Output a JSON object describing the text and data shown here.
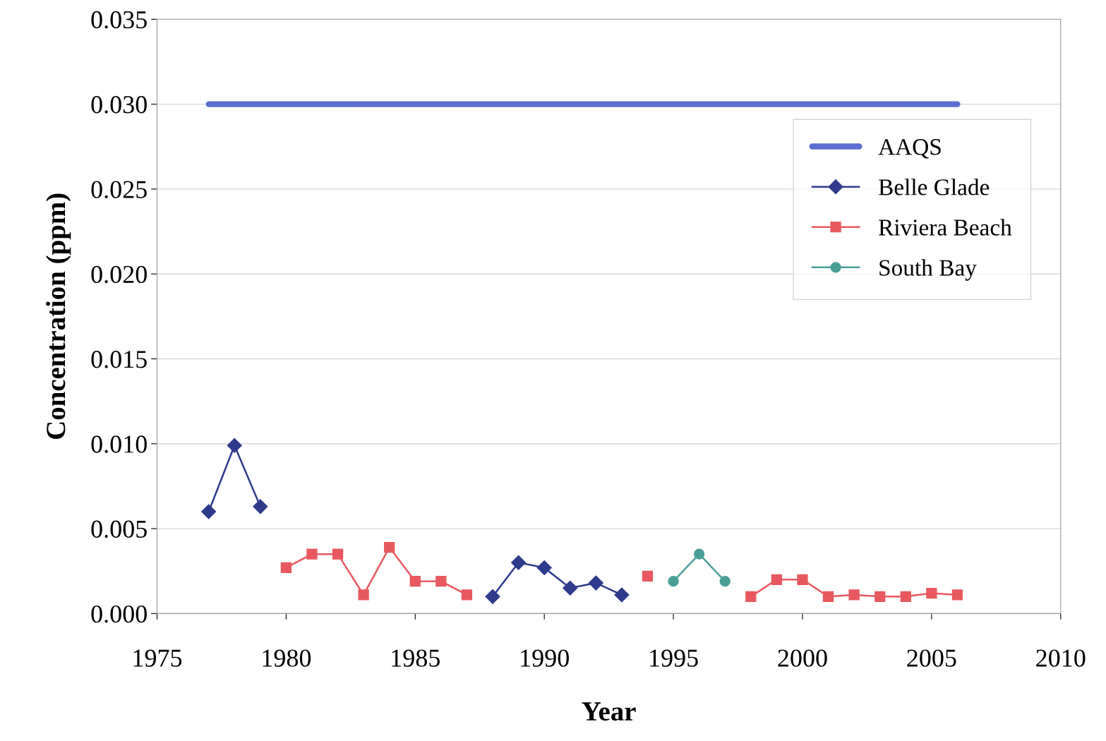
{
  "chart_data": {
    "type": "line",
    "xlabel": "Year",
    "ylabel": "Concentration (ppm)",
    "xlim": [
      1975,
      2010
    ],
    "xticks": [
      1975,
      1980,
      1985,
      1990,
      1995,
      2000,
      2005,
      2010
    ],
    "ylim": [
      0,
      0.035
    ],
    "yticks": [
      {
        "value": 0,
        "label": "0.000"
      },
      {
        "value": 0.005,
        "label": "0.005"
      },
      {
        "value": 0.01,
        "label": "0.010"
      },
      {
        "value": 0.015,
        "label": "0.015"
      },
      {
        "value": 0.02,
        "label": "0.020"
      },
      {
        "value": 0.025,
        "label": "0.025"
      },
      {
        "value": 0.03,
        "label": "0.030"
      },
      {
        "value": 0.035,
        "label": "0.035"
      }
    ],
    "grid": "y",
    "legend": "right",
    "series": [
      {
        "name": "AAQS",
        "color": "#5b6fd0",
        "marker": "none",
        "x": [
          1977,
          2006
        ],
        "values": [
          0.03,
          0.03
        ]
      },
      {
        "name": "Belle Glade",
        "color": "#2e3a8c",
        "marker": "diamond",
        "x": [
          1977,
          1978,
          1979,
          1980,
          1988,
          1989,
          1990,
          1991,
          1992,
          1993
        ],
        "values": [
          0.006,
          0.0099,
          0.0063,
          null,
          0.001,
          0.003,
          0.0027,
          0.0015,
          0.0018,
          0.0011
        ]
      },
      {
        "name": "Riviera Beach",
        "color": "#e8585f",
        "marker": "square",
        "x": [
          1980,
          1981,
          1982,
          1983,
          1984,
          1985,
          1986,
          1987,
          1988,
          1994,
          1995,
          1998,
          1999,
          2000,
          2001,
          2002,
          2003,
          2004,
          2005,
          2006
        ],
        "values": [
          0.0027,
          0.0035,
          0.0035,
          0.0011,
          0.0039,
          0.0019,
          0.0019,
          0.0011,
          null,
          0.0022,
          null,
          0.001,
          0.002,
          0.002,
          0.001,
          0.0011,
          0.001,
          0.001,
          0.0012,
          0.0011
        ]
      },
      {
        "name": "South Bay",
        "color": "#4a9e98",
        "marker": "circle",
        "x": [
          1995,
          1996,
          1997
        ],
        "values": [
          0.0019,
          0.0035,
          0.0019
        ]
      }
    ]
  }
}
